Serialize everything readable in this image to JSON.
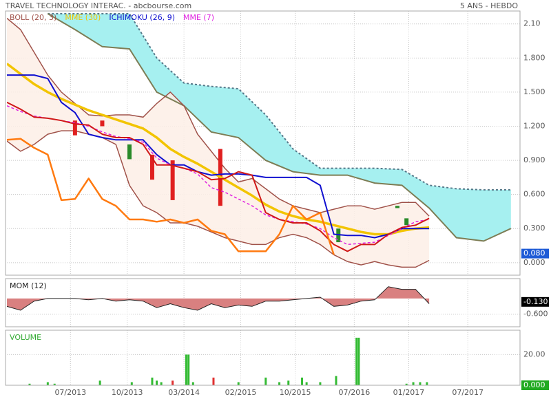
{
  "chart_data": [
    {
      "type": "line",
      "title": "TRAVEL TECHNOLOGY INTERAC. - abcbourse.com",
      "subtitle": "5 ANS - HEBDO",
      "xlim": [
        0,
        226
      ],
      "ylim": [
        -0.11,
        2.28
      ],
      "yticks": [
        {
          "value": 2.1,
          "label": "2.10"
        },
        {
          "value": 1.8,
          "label": "1.800"
        },
        {
          "value": 1.5,
          "label": "1.500"
        },
        {
          "value": 1.2,
          "label": "1.200"
        },
        {
          "value": 0.9,
          "label": "0.900"
        },
        {
          "value": 0.6,
          "label": "0.600"
        },
        {
          "value": 0.3,
          "label": "0.300"
        },
        {
          "value": 0,
          "label": "0.000"
        }
      ],
      "grid": true,
      "last_value": {
        "value": 0.08,
        "label": "0.080",
        "color": "#1e5bd6"
      },
      "cloud": {
        "fill": "#a6f0f0",
        "upper_color": "#557788",
        "lower_color": "#7d7d55",
        "x": [
          18,
          30,
          42,
          54,
          66,
          78,
          90,
          102,
          114,
          126,
          138,
          150,
          162,
          174,
          186,
          198,
          210,
          222
        ],
        "upper": [
          2.19,
          2.19,
          2.19,
          2.19,
          1.8,
          1.58,
          1.55,
          1.53,
          1.3,
          1.0,
          0.83,
          0.83,
          0.83,
          0.82,
          0.68,
          0.65,
          0.64,
          0.64
        ],
        "lower": [
          2.19,
          2.05,
          1.9,
          1.88,
          1.5,
          1.38,
          1.15,
          1.1,
          0.9,
          0.8,
          0.77,
          0.77,
          0.7,
          0.68,
          0.48,
          0.22,
          0.19,
          0.3
        ]
      },
      "x": [
        0,
        6,
        12,
        18,
        24,
        30,
        36,
        42,
        48,
        54,
        60,
        66,
        72,
        78,
        84,
        90,
        96,
        102,
        108,
        114,
        120,
        126,
        132,
        138,
        144,
        150,
        156,
        162,
        168,
        174,
        180,
        186
      ],
      "bollinger": {
        "name": "BOLL (20, 3)",
        "color": "#a0524a",
        "fill": "#fdeee6",
        "upper": [
          2.15,
          2.05,
          1.85,
          1.65,
          1.5,
          1.4,
          1.3,
          1.29,
          1.3,
          1.3,
          1.28,
          1.4,
          1.5,
          1.38,
          1.13,
          0.98,
          0.83,
          0.71,
          0.74,
          0.65,
          0.56,
          0.5,
          0.47,
          0.44,
          0.47,
          0.5,
          0.5,
          0.47,
          0.5,
          0.53,
          0.53,
          0.41
        ],
        "lower": [
          1.07,
          0.98,
          1.04,
          1.13,
          1.16,
          1.16,
          1.13,
          1.1,
          1.04,
          0.68,
          0.5,
          0.44,
          0.35,
          0.35,
          0.32,
          0.27,
          0.22,
          0.19,
          0.16,
          0.16,
          0.22,
          0.25,
          0.22,
          0.16,
          0.07,
          0.01,
          -0.02,
          0.01,
          -0.02,
          -0.04,
          -0.04,
          0.02
        ]
      },
      "series": [
        {
          "name": "MME (30)",
          "color": "#f2c400",
          "values": [
            1.75,
            1.66,
            1.57,
            1.5,
            1.44,
            1.39,
            1.34,
            1.3,
            1.26,
            1.22,
            1.18,
            1.1,
            1.0,
            0.93,
            0.87,
            0.8,
            0.73,
            0.66,
            0.59,
            0.51,
            0.45,
            0.41,
            0.38,
            0.36,
            0.33,
            0.3,
            0.27,
            0.25,
            0.25,
            0.28,
            0.3,
            0.31
          ]
        },
        {
          "name": "ICHIMOKU (26, 9)",
          "color": "#1010d0",
          "values": [
            1.65,
            1.65,
            1.65,
            1.62,
            1.41,
            1.32,
            1.13,
            1.1,
            1.08,
            1.08,
            1.08,
            0.95,
            0.86,
            0.86,
            0.8,
            0.77,
            0.78,
            0.78,
            0.77,
            0.75,
            0.75,
            0.75,
            0.75,
            0.68,
            0.25,
            0.24,
            0.24,
            0.22,
            0.25,
            0.3,
            0.3,
            0.3
          ]
        },
        {
          "name": "MME (7)",
          "color": "#e020e0",
          "dashed": true,
          "values": [
            1.38,
            1.33,
            1.29,
            1.27,
            1.25,
            1.23,
            1.2,
            1.15,
            1.11,
            1.09,
            1.06,
            0.92,
            0.86,
            0.83,
            0.78,
            0.66,
            0.62,
            0.56,
            0.5,
            0.42,
            0.38,
            0.36,
            0.34,
            0.3,
            0.22,
            0.16,
            0.17,
            0.18,
            0.24,
            0.3,
            0.36,
            0.38
          ]
        },
        {
          "color": "#d01818",
          "values": [
            1.41,
            1.35,
            1.28,
            1.27,
            1.25,
            1.22,
            1.21,
            1.13,
            1.1,
            1.1,
            1.04,
            0.86,
            0.86,
            0.83,
            0.8,
            0.73,
            0.74,
            0.8,
            0.77,
            0.44,
            0.38,
            0.35,
            0.35,
            0.28,
            0.16,
            0.1,
            0.16,
            0.16,
            0.25,
            0.31,
            0.33,
            0.39
          ]
        },
        {
          "color": "#ff7a10",
          "values": [
            1.08,
            1.09,
            1.01,
            0.95,
            0.55,
            0.56,
            0.74,
            0.56,
            0.5,
            0.38,
            0.38,
            0.36,
            0.38,
            0.35,
            0.38,
            0.28,
            0.25,
            0.1,
            0.1,
            0.1,
            0.25,
            0.5,
            0.38,
            0.44,
            0.07,
            null,
            null,
            null,
            null,
            null,
            null,
            null
          ]
        }
      ],
      "candles": {
        "up_color": "#2a8a2a",
        "down_color": "#e02020",
        "x": [
          30,
          42,
          54,
          64,
          73,
          94,
          146,
          172,
          176
        ],
        "open": [
          1.25,
          1.25,
          0.91,
          0.95,
          0.9,
          1.0,
          0.18,
          0.48,
          0.33
        ],
        "close": [
          1.12,
          1.2,
          1.04,
          0.73,
          0.55,
          0.5,
          0.3,
          0.5,
          0.39
        ]
      }
    },
    {
      "type": "area",
      "title": "MOM (12)",
      "xlim": [
        0,
        226
      ],
      "ylim": [
        -1.08,
        0.68
      ],
      "yticks": [
        {
          "value": -0.6,
          "label": "-0.600"
        }
      ],
      "grid": true,
      "color": "#d98080",
      "line_color": "#222222",
      "last_value": {
        "value": -0.13,
        "label": "-0.130",
        "color": "#000000"
      },
      "x": [
        0,
        6,
        12,
        18,
        24,
        30,
        36,
        42,
        48,
        54,
        60,
        66,
        72,
        78,
        84,
        90,
        96,
        102,
        108,
        114,
        120,
        126,
        132,
        138,
        144,
        150,
        156,
        162,
        168,
        174,
        180,
        186
      ],
      "values": [
        -0.3,
        -0.45,
        -0.1,
        0,
        0,
        0,
        -0.05,
        0,
        -0.1,
        -0.05,
        -0.1,
        -0.35,
        -0.2,
        -0.35,
        -0.45,
        -0.2,
        -0.35,
        -0.25,
        -0.3,
        -0.1,
        -0.1,
        -0.05,
        0,
        0.05,
        -0.3,
        -0.25,
        -0.1,
        -0.05,
        0.45,
        0.35,
        0.35,
        -0.2
      ]
    },
    {
      "type": "bar",
      "title": "VOLUME",
      "title_color": "#33aa33",
      "xlim": [
        0,
        226
      ],
      "ylim": [
        0,
        35
      ],
      "yticks": [
        {
          "value": 20,
          "label": "20.00"
        }
      ],
      "xticks": [
        {
          "value": 28,
          "label": "07/2013"
        },
        {
          "value": 53,
          "label": "10/2013"
        },
        {
          "value": 78,
          "label": "03/2014"
        },
        {
          "value": 103,
          "label": "02/2015"
        },
        {
          "value": 127,
          "label": "10/2015"
        },
        {
          "value": 153,
          "label": "07/2016"
        },
        {
          "value": 177,
          "label": "01/2017"
        },
        {
          "value": 203,
          "label": "07/2017"
        }
      ],
      "grid": true,
      "last_value": {
        "value": 0,
        "label": "0.000",
        "color": "#22aa22"
      },
      "x": [
        10,
        18,
        21,
        41,
        55,
        64,
        66,
        68,
        73,
        79,
        80,
        82,
        91,
        102,
        114,
        120,
        124,
        130,
        132,
        138,
        145,
        154,
        155,
        176,
        179,
        182,
        185
      ],
      "values": [
        1,
        2,
        1,
        3,
        2,
        5,
        3,
        2,
        3,
        20,
        20,
        2,
        5,
        2,
        5,
        2,
        3,
        5,
        2,
        2,
        6,
        31,
        31,
        1,
        2,
        2,
        2
      ],
      "colors": [
        "#33bb33",
        "#33bb33",
        "#33bb33",
        "#33bb33",
        "#33bb33",
        "#33bb33",
        "#33bb33",
        "#33bb33",
        "#e03030",
        "#33bb33",
        "#33bb33",
        "#33bb33",
        "#e03030",
        "#33bb33",
        "#33bb33",
        "#33bb33",
        "#33bb33",
        "#33bb33",
        "#33bb33",
        "#33bb33",
        "#33bb33",
        "#33bb33",
        "#33bb33",
        "#33bb33",
        "#33bb33",
        "#33bb33",
        "#33bb33"
      ]
    }
  ]
}
